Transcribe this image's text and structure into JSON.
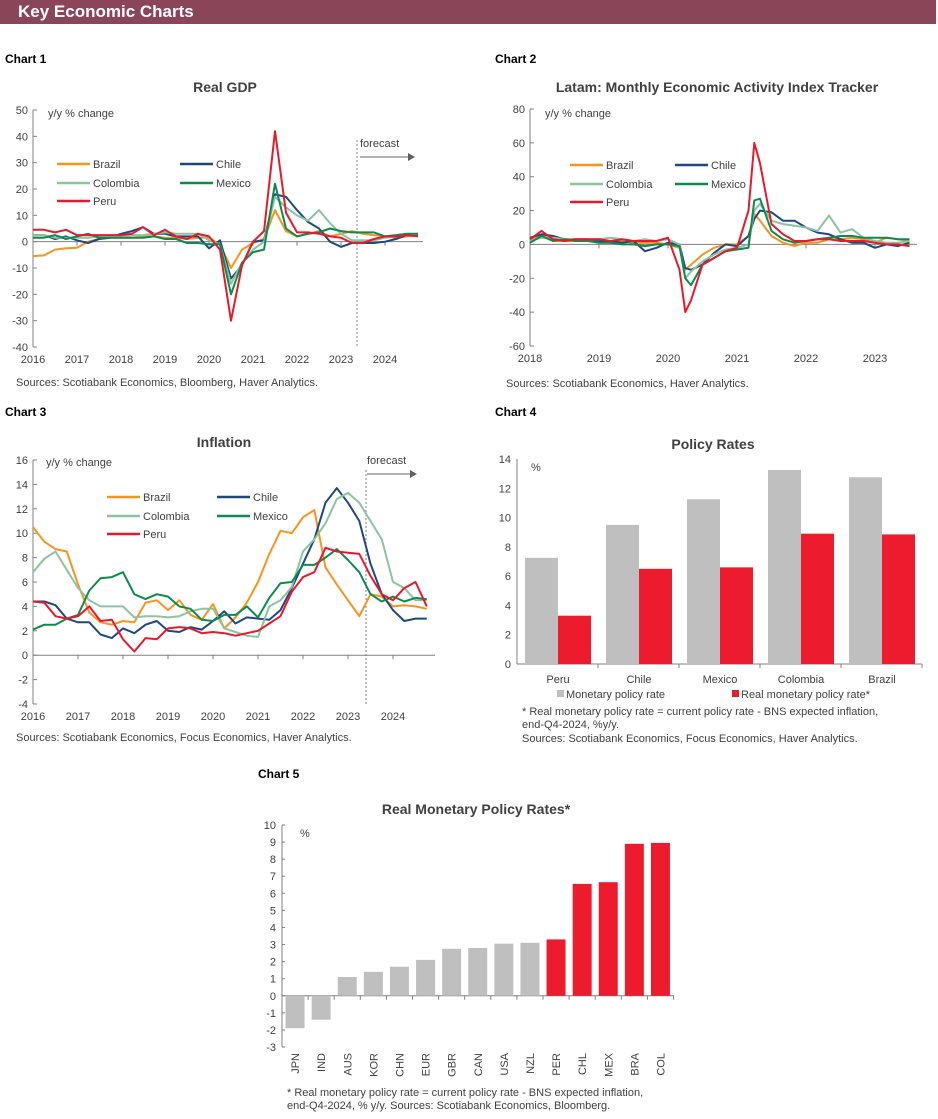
{
  "header": {
    "title": "Key Economic Charts",
    "color": "#8B4558"
  },
  "colors": {
    "Brazil": "#F7941D",
    "Chile": "#1F497D",
    "Colombia": "#8CC3A0",
    "Mexico": "#0E8A50",
    "Peru": "#E8192C",
    "gray_bar": "#BFBFBF",
    "red_bar": "#EC1C2E"
  },
  "chart_data": [
    {
      "label": "Chart 1",
      "type": "line",
      "title": "Real GDP",
      "ylabel": "y/y % change",
      "ylim": [
        -40,
        50
      ],
      "yticks": [
        50,
        40,
        30,
        20,
        10,
        0,
        -10,
        -20,
        -30,
        -40
      ],
      "xticks": [
        "2016",
        "2017",
        "2018",
        "2019",
        "2020",
        "2021",
        "2022",
        "2023",
        "2024"
      ],
      "annotation": "forecast",
      "forecast_start": "2023Q2",
      "source": "Sources: Scotiabank Economics, Bloomberg, Haver Analytics.",
      "x": [
        "2016Q1",
        "2016Q2",
        "2016Q3",
        "2016Q4",
        "2017Q1",
        "2017Q2",
        "2017Q3",
        "2017Q4",
        "2018Q1",
        "2018Q2",
        "2018Q3",
        "2018Q4",
        "2019Q1",
        "2019Q2",
        "2019Q3",
        "2019Q4",
        "2020Q1",
        "2020Q2",
        "2020Q3",
        "2020Q4",
        "2021Q1",
        "2021Q2",
        "2021Q3",
        "2021Q4",
        "2022Q1",
        "2022Q2",
        "2022Q3",
        "2022Q4",
        "2023Q1",
        "2023Q2",
        "2023Q3",
        "2023Q4",
        "2024Q1",
        "2024Q2",
        "2024Q3",
        "2024Q4"
      ],
      "series": [
        {
          "name": "Brazil",
          "values": [
            -5.5,
            -5.2,
            -3,
            -2.5,
            -2.3,
            0,
            1,
            1.5,
            1.5,
            1.5,
            2,
            2,
            1.5,
            1.5,
            1,
            1.5,
            1.5,
            -1,
            -10,
            -3,
            -0.5,
            1,
            12,
            4,
            2,
            3,
            4,
            2,
            3,
            4,
            3,
            2.5,
            2,
            1.5,
            2,
            2.5
          ]
        },
        {
          "name": "Chile",
          "values": [
            2.5,
            2.5,
            1,
            2,
            0.5,
            -0.5,
            1,
            1.5,
            3,
            4,
            5.5,
            3,
            3,
            2,
            2,
            2,
            -2.5,
            0.5,
            -14,
            -9,
            0,
            0.5,
            18,
            17,
            12,
            7.5,
            5,
            0,
            -2,
            -0.5,
            -0.5,
            -0.5,
            0,
            1,
            2.5,
            2.5
          ]
        },
        {
          "name": "Colombia",
          "values": [
            2.5,
            2.5,
            1.5,
            1.5,
            1.5,
            1.5,
            2,
            2,
            2,
            2.5,
            2.5,
            3,
            3.5,
            3,
            3,
            3,
            0.5,
            -1,
            -16,
            -8,
            -3,
            0,
            17,
            13,
            10,
            8,
            12,
            7,
            3,
            0.5,
            0.5,
            0.5,
            1.5,
            2,
            2.5,
            3
          ]
        },
        {
          "name": "Mexico",
          "values": [
            1.5,
            1.5,
            2.5,
            1,
            2,
            3,
            1.5,
            1.5,
            1.5,
            1.5,
            1.5,
            2,
            1,
            1,
            -0.5,
            -0.5,
            -1,
            -1,
            -20,
            -8,
            -4,
            -3,
            22,
            5,
            2,
            3,
            3.5,
            5,
            4,
            3.5,
            3.5,
            3.5,
            2,
            2.5,
            3,
            3
          ]
        },
        {
          "name": "Peru",
          "values": [
            4.5,
            4.5,
            3.5,
            4.5,
            2.5,
            2.5,
            2.5,
            2.5,
            2.5,
            3,
            5.5,
            2.5,
            4.5,
            2,
            1,
            3,
            2,
            -3,
            -30,
            -9,
            0,
            4,
            42,
            11,
            3.5,
            3.5,
            3,
            2,
            1.5,
            -0.5,
            -0.5,
            1,
            2,
            2,
            2.5,
            2
          ]
        }
      ]
    },
    {
      "label": "Chart 2",
      "type": "line",
      "title": "Latam: Monthly Economic Activity Index Tracker",
      "ylabel": "y/y % change",
      "ylim": [
        -60,
        80
      ],
      "yticks": [
        80,
        60,
        40,
        20,
        0,
        -20,
        -40,
        -60
      ],
      "xticks": [
        "2018",
        "2019",
        "2020",
        "2021",
        "2022",
        "2023"
      ],
      "source": "Sources: Scotiabank Economics, Haver Analytics.",
      "x": [
        "2018-01",
        "2018-03",
        "2018-05",
        "2018-07",
        "2018-09",
        "2018-11",
        "2019-01",
        "2019-03",
        "2019-05",
        "2019-07",
        "2019-09",
        "2019-11",
        "2020-01",
        "2020-03",
        "2020-04",
        "2020-05",
        "2020-07",
        "2020-09",
        "2020-11",
        "2021-01",
        "2021-03",
        "2021-04",
        "2021-05",
        "2021-07",
        "2021-09",
        "2021-11",
        "2022-01",
        "2022-03",
        "2022-05",
        "2022-07",
        "2022-09",
        "2022-11",
        "2023-01",
        "2023-03",
        "2023-05",
        "2023-07"
      ],
      "series": [
        {
          "name": "Brazil",
          "values": [
            2,
            6,
            2,
            2,
            2,
            3,
            1,
            2,
            2,
            1,
            1,
            1,
            0,
            -2,
            -15,
            -12,
            -6,
            -2,
            0,
            0,
            5,
            18,
            14,
            5,
            1,
            -1,
            1,
            1,
            3,
            3,
            4,
            3,
            1,
            4,
            3,
            2
          ]
        },
        {
          "name": "Chile",
          "values": [
            4,
            6,
            5,
            3,
            3,
            3,
            2,
            2,
            1,
            2,
            -4,
            -2,
            1,
            0,
            -14,
            -15,
            -12,
            -5,
            0,
            -1,
            5,
            15,
            20,
            19,
            14,
            14,
            10,
            7,
            6,
            3,
            1,
            1,
            -2,
            0,
            -1,
            1
          ]
        },
        {
          "name": "Colombia",
          "values": [
            2,
            4,
            4,
            3,
            3,
            3,
            3,
            4,
            3,
            2,
            3,
            2,
            3,
            0,
            -20,
            -16,
            -10,
            -6,
            -3,
            -2,
            0,
            20,
            24,
            14,
            12,
            11,
            10,
            8,
            17,
            7,
            9,
            4,
            2,
            1,
            1,
            2
          ]
        },
        {
          "name": "Mexico",
          "values": [
            1,
            5,
            2,
            3,
            2,
            2,
            1,
            1,
            0,
            0,
            -1,
            0,
            0,
            -1,
            -20,
            -24,
            -12,
            -8,
            -4,
            -3,
            -2,
            26,
            27,
            8,
            3,
            1,
            2,
            3,
            4,
            5,
            5,
            4,
            4,
            4,
            3,
            3
          ]
        },
        {
          "name": "Peru",
          "values": [
            3,
            8,
            3,
            2,
            3,
            3,
            3,
            2,
            3,
            2,
            2,
            2,
            4,
            -15,
            -40,
            -33,
            -12,
            -8,
            -4,
            -2,
            20,
            60,
            48,
            12,
            6,
            2,
            2,
            3,
            3,
            2,
            2,
            2,
            1,
            0,
            0,
            -1
          ]
        }
      ]
    },
    {
      "label": "Chart 3",
      "type": "line",
      "title": "Inflation",
      "ylabel": "y/y % change",
      "ylim": [
        -4,
        16
      ],
      "yticks": [
        16,
        14,
        12,
        10,
        8,
        6,
        4,
        2,
        0,
        -2,
        -4
      ],
      "xticks": [
        "2016",
        "2017",
        "2018",
        "2019",
        "2020",
        "2021",
        "2022",
        "2023",
        "2024"
      ],
      "annotation": "forecast",
      "forecast_start": "2023Q2",
      "source": "Sources: Scotiabank Economics, Focus Economics, Haver Analytics.",
      "x": [
        "2016Q1",
        "2016Q2",
        "2016Q3",
        "2016Q4",
        "2017Q1",
        "2017Q2",
        "2017Q3",
        "2017Q4",
        "2018Q1",
        "2018Q2",
        "2018Q3",
        "2018Q4",
        "2019Q1",
        "2019Q2",
        "2019Q3",
        "2019Q4",
        "2020Q1",
        "2020Q2",
        "2020Q3",
        "2020Q4",
        "2021Q1",
        "2021Q2",
        "2021Q3",
        "2021Q4",
        "2022Q1",
        "2022Q2",
        "2022Q3",
        "2022Q4",
        "2023Q1",
        "2023Q2",
        "2023Q3",
        "2023Q4",
        "2024Q1",
        "2024Q2",
        "2024Q3",
        "2024Q4"
      ],
      "series": [
        {
          "name": "Brazil",
          "values": [
            10.5,
            9.3,
            8.7,
            8.5,
            5.8,
            3.5,
            2.7,
            2.5,
            2.8,
            2.7,
            4.3,
            4.5,
            3.7,
            4.5,
            3.3,
            2.9,
            4.2,
            2.2,
            3.1,
            4.3,
            6,
            8.3,
            10.2,
            10,
            11.3,
            11.9,
            7.2,
            5.8,
            4.5,
            3.2,
            5,
            4.8,
            4,
            4.1,
            4,
            3.8
          ]
        },
        {
          "name": "Chile",
          "values": [
            4.4,
            4.4,
            4.1,
            3,
            2.7,
            2.7,
            1.7,
            1.4,
            2.2,
            1.8,
            2.5,
            2.8,
            2,
            1.9,
            2.3,
            2.1,
            2.8,
            3.6,
            2.6,
            3.1,
            3,
            2.9,
            3.7,
            5.5,
            7.5,
            9.5,
            12.5,
            13.7,
            12.5,
            11,
            7.5,
            5,
            3.7,
            2.8,
            3,
            3
          ]
        },
        {
          "name": "Colombia",
          "values": [
            6.8,
            7.9,
            8.5,
            7,
            5.5,
            4.5,
            4,
            4,
            4,
            3.1,
            3.2,
            3.2,
            3.1,
            3.2,
            3.6,
            3.8,
            3.8,
            2.2,
            1.9,
            1.6,
            1.5,
            4,
            4.5,
            5.6,
            8.5,
            9.5,
            10.8,
            12.8,
            13.3,
            12.5,
            11,
            9.5,
            6,
            5.5,
            4.5,
            4.5
          ]
        },
        {
          "name": "Mexico",
          "values": [
            2.1,
            2.5,
            2.5,
            3,
            3.3,
            5.3,
            6.3,
            6.4,
            6.8,
            5,
            4.6,
            5,
            4.8,
            4,
            3.8,
            2.9,
            2.8,
            3.3,
            3.3,
            4,
            3.1,
            4.7,
            5.9,
            6,
            7.4,
            7.4,
            8,
            8.7,
            7.8,
            6.8,
            5,
            4.4,
            4.8,
            4.4,
            4.7,
            4.6
          ]
        },
        {
          "name": "Peru",
          "values": [
            4.4,
            4.3,
            3.2,
            3,
            3.2,
            4,
            2.8,
            2.9,
            1.3,
            0.3,
            1.4,
            1.3,
            2.2,
            2.3,
            2.2,
            1.8,
            1.9,
            1.8,
            1.6,
            1.8,
            2,
            2.6,
            3.2,
            5.2,
            6.4,
            6.8,
            8.8,
            8.5,
            8.4,
            8.3,
            6.5,
            5,
            4.5,
            5.5,
            6,
            4
          ]
        }
      ]
    },
    {
      "label": "Chart 4",
      "type": "bar",
      "title": "Policy Rates",
      "ylabel": "%",
      "ylim": [
        0,
        14
      ],
      "yticks": [
        14,
        12,
        10,
        8,
        6,
        4,
        2,
        0
      ],
      "categories": [
        "Peru",
        "Chile",
        "Mexico",
        "Colombia",
        "Brazil"
      ],
      "series": [
        {
          "name": "Monetary policy rate",
          "values": [
            7.25,
            9.5,
            11.25,
            13.25,
            12.75
          ]
        },
        {
          "name": "Real monetary policy rate*",
          "values": [
            3.3,
            6.5,
            6.6,
            8.9,
            8.85
          ]
        }
      ],
      "notes": [
        "* Real monetary policy rate = current policy rate - BNS expected inflation,",
        "end-Q4-2024, %y/y.",
        "Sources: Scotiabank Economics, Focus Economics, Haver Analytics."
      ]
    },
    {
      "label": "Chart 5",
      "type": "bar",
      "title": "Real Monetary Policy Rates*",
      "ylabel": "%",
      "ylim": [
        -3,
        10
      ],
      "yticks": [
        10,
        9,
        8,
        7,
        6,
        5,
        4,
        3,
        2,
        1,
        0,
        -1,
        -2,
        -3
      ],
      "categories": [
        "JPN",
        "IND",
        "AUS",
        "KOR",
        "CHN",
        "EUR",
        "GBR",
        "CAN",
        "USA",
        "NZL",
        "PER",
        "CHL",
        "MEX",
        "BRA",
        "COL"
      ],
      "values": [
        -1.9,
        -1.4,
        1.1,
        1.4,
        1.7,
        2.1,
        2.75,
        2.8,
        3.05,
        3.1,
        3.3,
        6.55,
        6.65,
        8.9,
        8.95
      ],
      "highlighted": [
        "PER",
        "CHL",
        "MEX",
        "BRA",
        "COL"
      ],
      "notes": [
        "* Real monetary policy rate = current policy rate - BNS expected inflation,",
        "end-Q4-2024, % y/y. Sources: Scotiabank Economics, Bloomberg."
      ]
    }
  ]
}
